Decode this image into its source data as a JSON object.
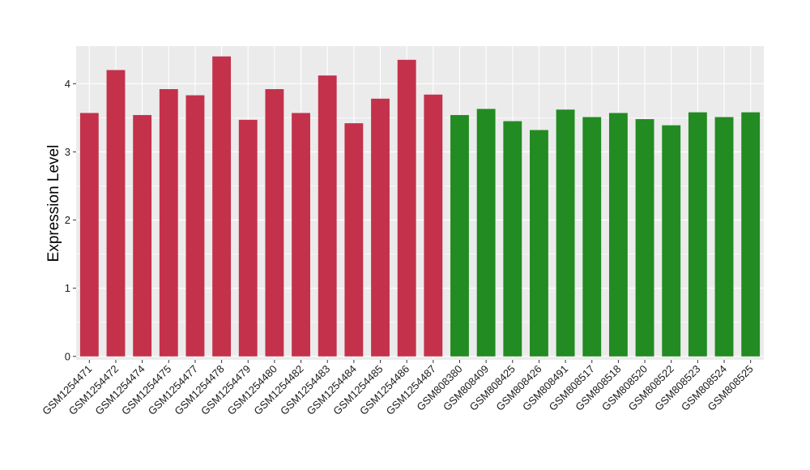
{
  "chart_data": {
    "type": "bar",
    "title": "",
    "xlabel": "",
    "ylabel": "Expression Level",
    "ylim": [
      -0.05,
      4.55
    ],
    "yticks": [
      0,
      1,
      2,
      3,
      4
    ],
    "ytick_labels": [
      "0",
      "1",
      "2",
      "3",
      "4"
    ],
    "grid": true,
    "legend": "none",
    "panel_color": "#ebebeb",
    "grid_color": "#ffffff",
    "categories": [
      "GSM1254471",
      "GSM1254472",
      "GSM1254474",
      "GSM1254475",
      "GSM1254477",
      "GSM1254478",
      "GSM1254479",
      "GSM1254480",
      "GSM1254482",
      "GSM1254483",
      "GSM1254484",
      "GSM1254485",
      "GSM1254486",
      "GSM1254487",
      "GSM808380",
      "GSM808409",
      "GSM808425",
      "GSM808426",
      "GSM808491",
      "GSM808517",
      "GSM808518",
      "GSM808520",
      "GSM808522",
      "GSM808523",
      "GSM808524",
      "GSM808525"
    ],
    "values": [
      3.57,
      4.2,
      3.54,
      3.92,
      3.83,
      4.4,
      3.47,
      3.92,
      3.57,
      4.12,
      3.42,
      3.78,
      4.35,
      3.84,
      3.54,
      3.63,
      3.45,
      3.32,
      3.62,
      3.51,
      3.57,
      3.48,
      3.39,
      3.58,
      3.51,
      3.58
    ],
    "colors": [
      "#c4314b",
      "#c4314b",
      "#c4314b",
      "#c4314b",
      "#c4314b",
      "#c4314b",
      "#c4314b",
      "#c4314b",
      "#c4314b",
      "#c4314b",
      "#c4314b",
      "#c4314b",
      "#c4314b",
      "#c4314b",
      "#228b22",
      "#228b22",
      "#228b22",
      "#228b22",
      "#228b22",
      "#228b22",
      "#228b22",
      "#228b22",
      "#228b22",
      "#228b22",
      "#228b22",
      "#228b22"
    ]
  }
}
